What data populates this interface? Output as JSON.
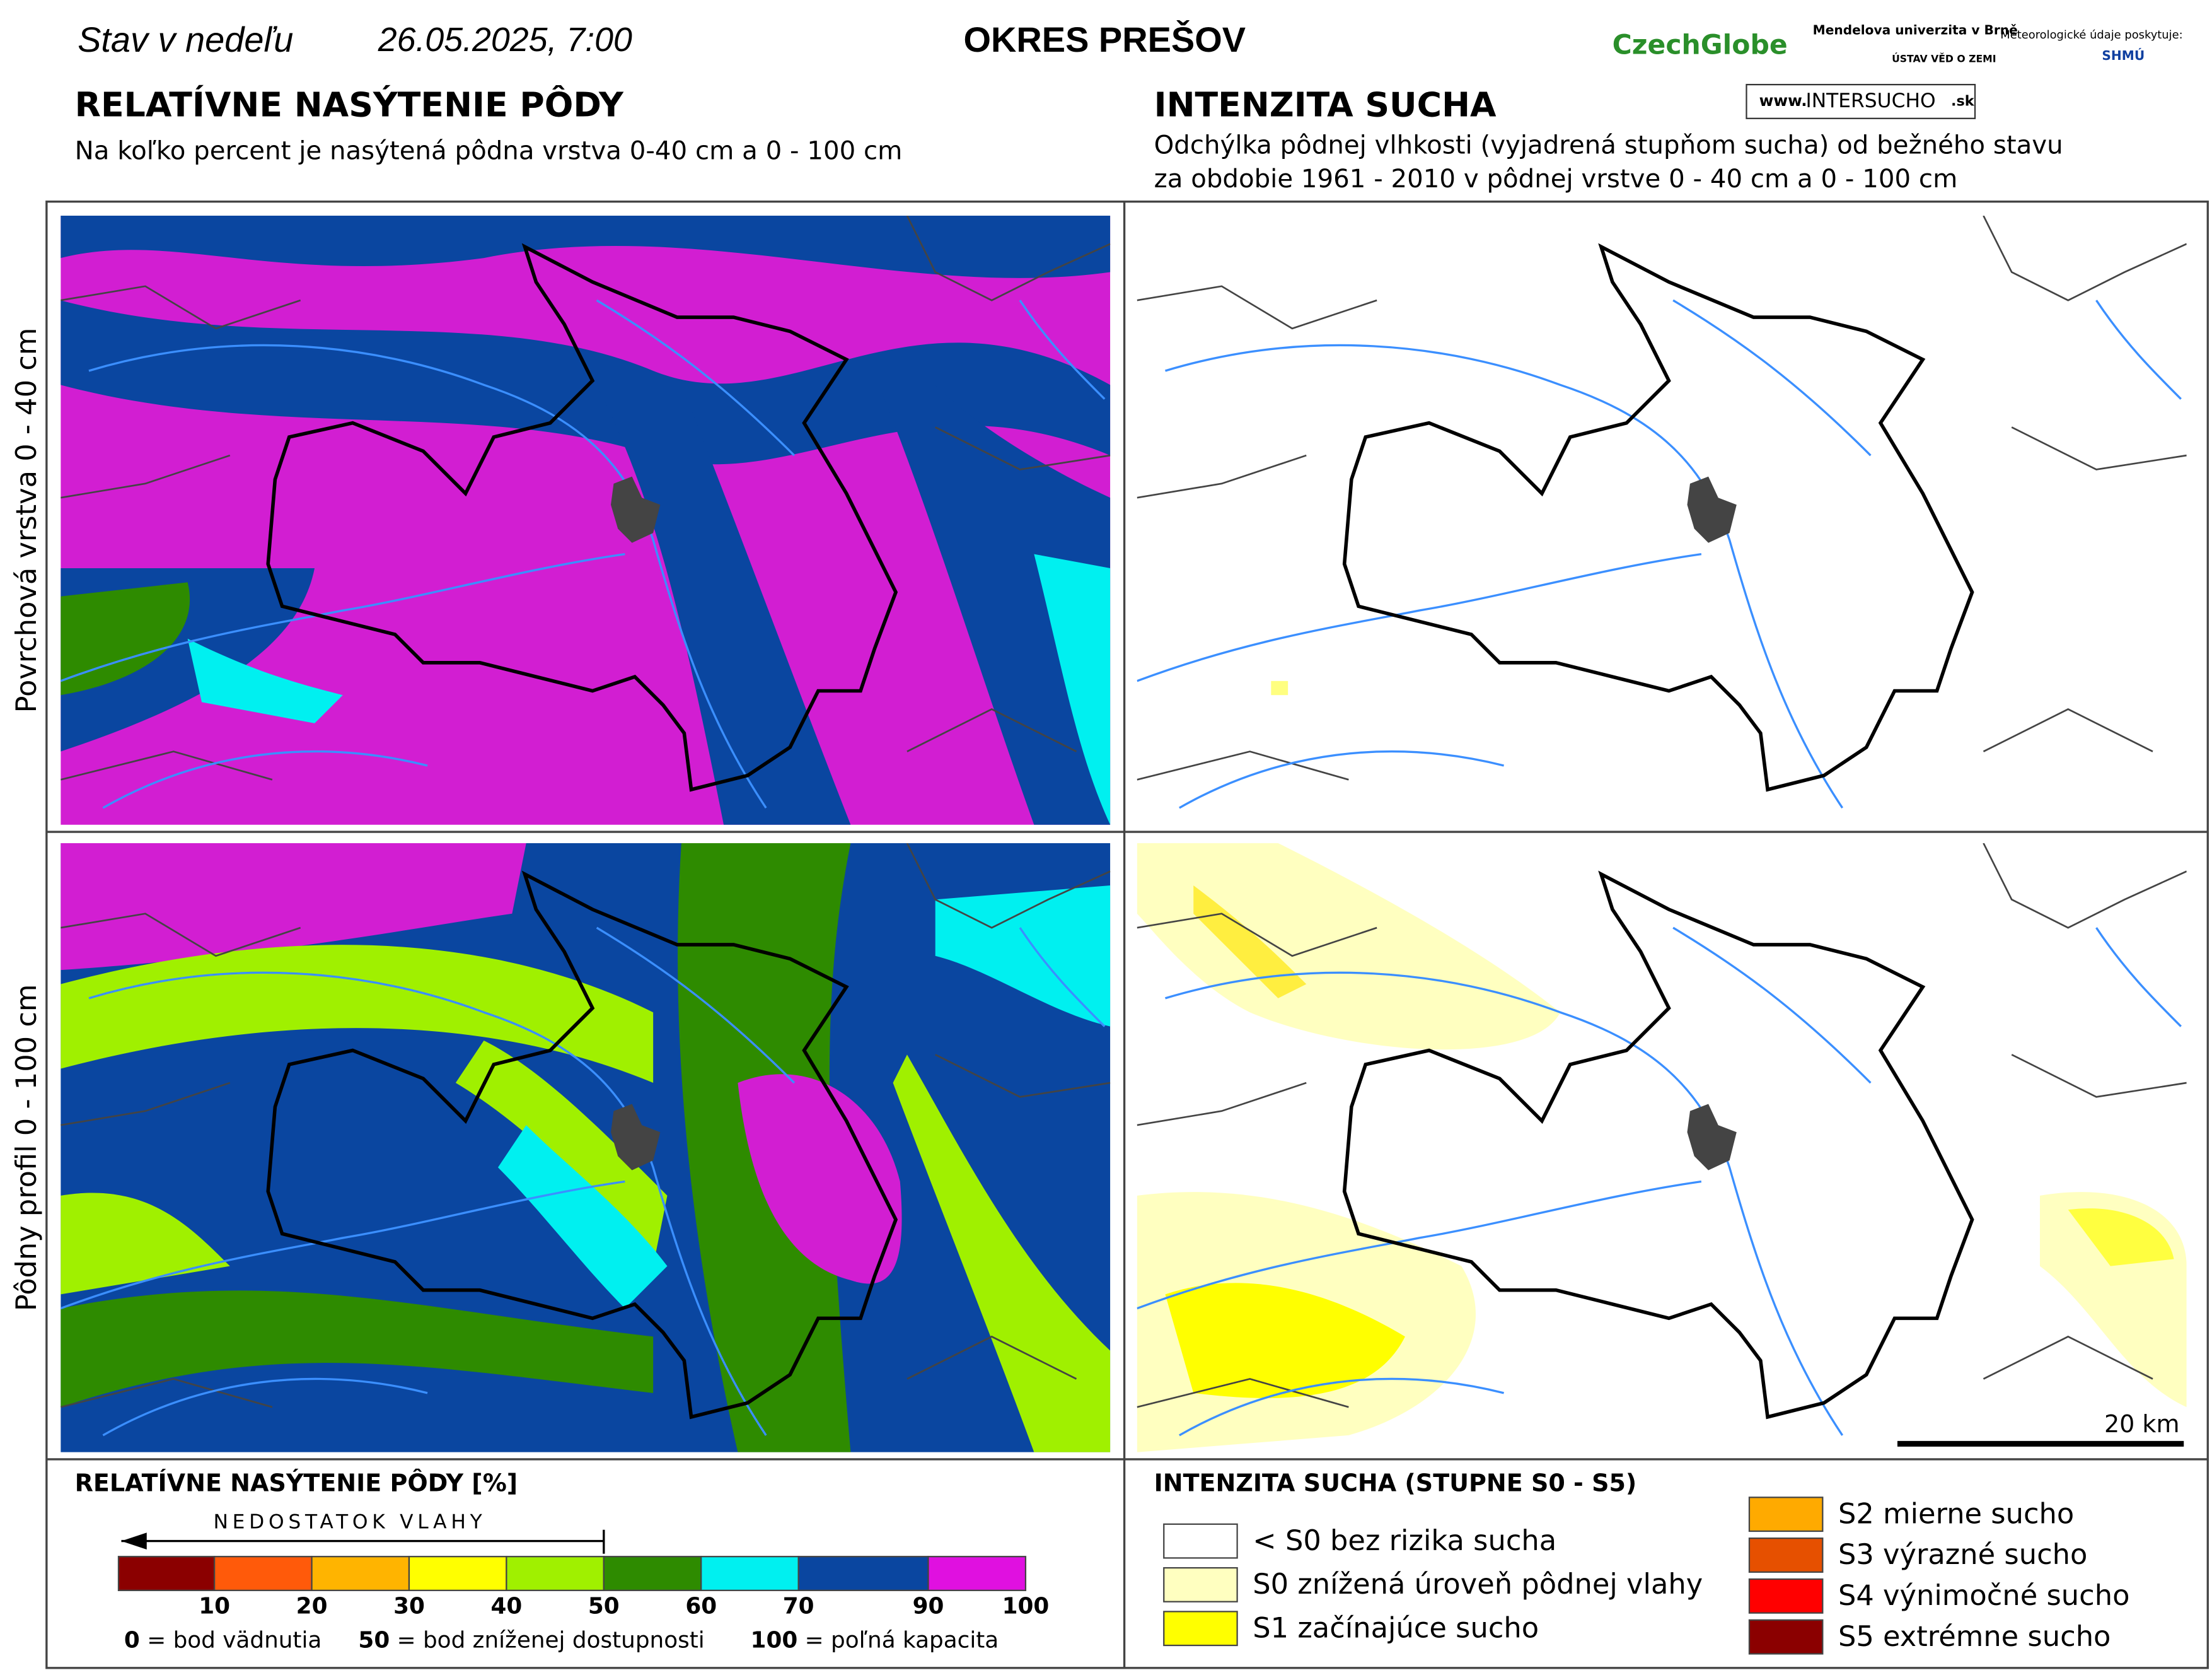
{
  "header": {
    "date_prefix": "Stav v nedeľu",
    "date": "26.05.2025, 7:00",
    "region": "OKRES PREŠOV",
    "logos": [
      "CzechGlobe",
      "Mendelova univerzita v Brně",
      "ÚSTAV VĚD O ZEMI",
      "Meteorologické údaje poskytuje:",
      "SHMÚ"
    ],
    "website": [
      "www.",
      "INTERSUCHO",
      ".sk"
    ]
  },
  "left": {
    "title": "RELATÍVNE NASÝTENIE PÔDY",
    "subtitle": "Na koľko percent je nasýtená pôdna vrstva 0-40 cm a 0 - 100 cm"
  },
  "right": {
    "title": "INTENZITA SUCHA",
    "subtitle_lines": [
      "Odchýlka pôdnej vlhkosti (vyjadrená stupňom sucha) od bežného stavu",
      "za obdobie 1961 - 2010 v pôdnej vrstve 0 - 40 cm a 0 - 100 cm"
    ]
  },
  "row_labels": [
    "Povrchová vrstva 0 - 40 cm",
    "Pôdny profil 0 - 100 cm"
  ],
  "scale_bar": "20 km",
  "saturation_legend": {
    "title": "RELATÍVNE NASÝTENIE PÔDY [%]",
    "arrow_label": "NEDOSTATOK VLAHY",
    "colors": [
      "#8b0000",
      "#ff5a0a",
      "#ffb400",
      "#ffff00",
      "#a0f000",
      "#2e8b00",
      "#00f0f0",
      "#0a46a0",
      "#e010e0"
    ],
    "ticks": [
      10,
      20,
      30,
      40,
      50,
      60,
      70,
      90,
      100
    ],
    "notes": [
      {
        "value": "0",
        "label": "= bod vädnutia"
      },
      {
        "value": "50",
        "label": "= bod zníženej dostupnosti"
      },
      {
        "value": "100",
        "label": "= poľná kapacita"
      }
    ]
  },
  "drought_legend": {
    "title": "INTENZITA SUCHA (STUPNE S0 - S5)",
    "items": [
      {
        "label": "< S0 bez rizika sucha",
        "color": "#ffffff"
      },
      {
        "label": "S0 znížená úroveň pôdnej vlahy",
        "color": "#ffffc0"
      },
      {
        "label": "S1 začínajúce sucho",
        "color": "#ffff00"
      },
      {
        "label": "S2 mierne sucho",
        "color": "#ffaa00"
      },
      {
        "label": "S3 výrazné sucho",
        "color": "#e65000"
      },
      {
        "label": "S4 výnimočné sucho",
        "color": "#ff0000"
      },
      {
        "label": "S5 extrémne sucho",
        "color": "#8b0000"
      }
    ]
  }
}
